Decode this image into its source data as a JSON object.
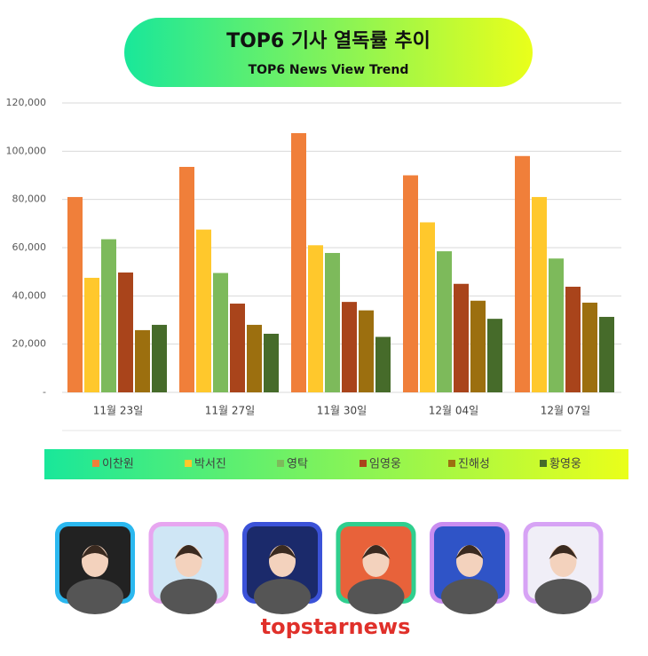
{
  "chart_data": {
    "type": "bar",
    "title": "TOP6 기사 열독률 추이",
    "subtitle": "TOP6  News View Trend",
    "categories": [
      "11월 23일",
      "11월 27일",
      "11월 30일",
      "12월 04일",
      "12월 07일"
    ],
    "series": [
      {
        "name": "이찬원",
        "color": "#f07f3a",
        "values": [
          81000,
          93500,
          107500,
          90000,
          98000
        ]
      },
      {
        "name": "박서진",
        "color": "#ffc82c",
        "values": [
          47500,
          67500,
          61000,
          70500,
          81000
        ]
      },
      {
        "name": "영탁",
        "color": "#7dba5b",
        "values": [
          63500,
          49500,
          57800,
          58500,
          55500
        ]
      },
      {
        "name": "임영웅",
        "color": "#a9441b",
        "values": [
          49700,
          36800,
          37500,
          45000,
          43800
        ]
      },
      {
        "name": "진해성",
        "color": "#9c6f0f",
        "values": [
          25800,
          28000,
          34000,
          38000,
          37200
        ]
      },
      {
        "name": "황영웅",
        "color": "#466b2a",
        "values": [
          28000,
          24300,
          23000,
          30500,
          31300
        ]
      }
    ],
    "ylim": [
      0,
      120000
    ],
    "yticks": [
      {
        "value": 0,
        "label": "-"
      },
      {
        "value": 20000,
        "label": "20,000"
      },
      {
        "value": 40000,
        "label": "40,000"
      },
      {
        "value": 60000,
        "label": "60,000"
      },
      {
        "value": 80000,
        "label": "80,000"
      },
      {
        "value": 100000,
        "label": "100,000"
      },
      {
        "value": 120000,
        "label": "120,000"
      }
    ],
    "grid": true
  },
  "footer": {
    "brand": "topstarnews"
  }
}
